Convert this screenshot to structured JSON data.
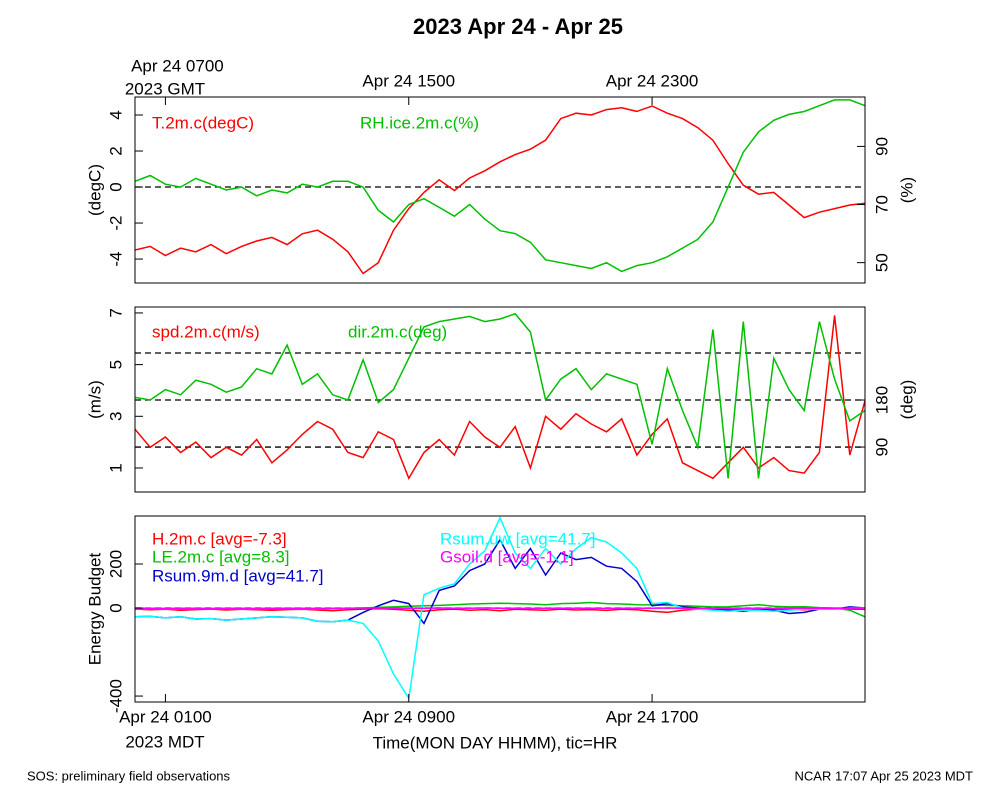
{
  "title": "2023 Apr 24 - Apr 25",
  "x_label": "Time(MON DAY HHMM), tic=HR",
  "x_sublabel": "2023 MDT",
  "top_sublabel": "2023 GMT",
  "footer_left": "SOS: preliminary field observations",
  "footer_right": "NCAR 17:07 Apr 25 2023 MDT",
  "chart_data": [
    {
      "type": "line",
      "ylabel": "(degC)",
      "y2label": "(%)",
      "xlim": [
        0,
        24
      ],
      "ylim": [
        -5.33,
        5
      ],
      "yticks": [
        -4,
        -2,
        0,
        2,
        4
      ],
      "y2lim": [
        43,
        107
      ],
      "y2ticks": [
        50,
        70,
        90
      ],
      "x2ticks": [
        {
          "value": 1,
          "label": "Apr 24 0700"
        },
        {
          "value": 9,
          "label": "Apr 24 1500"
        },
        {
          "value": 17,
          "label": "Apr 24 2300"
        }
      ],
      "hlines": [
        0
      ],
      "x": [
        0,
        0.5,
        1,
        1.5,
        2,
        2.5,
        3,
        3.5,
        4,
        4.5,
        5,
        5.5,
        6,
        6.5,
        7,
        7.5,
        8,
        8.5,
        9,
        9.5,
        10,
        10.5,
        11,
        11.5,
        12,
        12.5,
        13,
        13.5,
        14,
        14.5,
        15,
        15.5,
        16,
        16.5,
        17,
        17.5,
        18,
        18.5,
        19,
        19.5,
        20,
        20.5,
        21,
        21.5,
        22,
        22.5,
        23,
        23.5,
        24
      ],
      "series": [
        {
          "name": "T.2m.c(degC)",
          "color": "#ff0000",
          "values": [
            -3.5,
            -3.3,
            -3.8,
            -3.4,
            -3.6,
            -3.2,
            -3.7,
            -3.3,
            -3.0,
            -2.8,
            -3.2,
            -2.6,
            -2.4,
            -2.9,
            -3.6,
            -4.8,
            -4.2,
            -2.4,
            -1.2,
            -0.3,
            0.4,
            -0.2,
            0.5,
            0.9,
            1.4,
            1.8,
            2.1,
            2.6,
            3.8,
            4.1,
            4.0,
            4.3,
            4.4,
            4.2,
            4.5,
            4.1,
            3.8,
            3.3,
            2.6,
            1.3,
            0.1,
            -0.4,
            -0.3,
            -1.0,
            -1.7,
            -1.4,
            -1.2,
            -1.0,
            -0.9
          ]
        },
        {
          "name": "RH.ice.2m.c(%)",
          "color": "#00c000",
          "axis": "y2",
          "values": [
            78,
            80,
            77,
            76,
            79,
            77,
            75,
            76,
            73,
            75,
            74,
            77,
            76,
            78,
            78,
            76,
            68,
            64,
            70,
            72,
            69,
            66,
            70,
            65,
            61,
            60,
            57,
            51,
            50,
            49,
            48,
            50,
            47,
            49,
            50,
            52,
            55,
            58,
            64,
            76,
            88,
            95,
            99,
            101,
            102,
            104,
            106,
            106,
            104
          ]
        }
      ]
    },
    {
      "type": "line",
      "ylabel": "(m/s)",
      "y2label": "(deg)",
      "xlim": [
        0,
        24
      ],
      "ylim": [
        0.07,
        7.23
      ],
      "yticks": [
        1,
        3,
        5,
        7
      ],
      "y2lim": [
        4,
        358
      ],
      "y2ticks": [
        90,
        180
      ],
      "hlines_y2": [
        90,
        180,
        270
      ],
      "x": [
        0,
        0.5,
        1,
        1.5,
        2,
        2.5,
        3,
        3.5,
        4,
        4.5,
        5,
        5.5,
        6,
        6.5,
        7,
        7.5,
        8,
        8.5,
        9,
        9.5,
        10,
        10.5,
        11,
        11.5,
        12,
        12.5,
        13,
        13.5,
        14,
        14.5,
        15,
        15.5,
        16,
        16.5,
        17,
        17.5,
        18,
        18.5,
        19,
        19.5,
        20,
        20.5,
        21,
        21.5,
        22,
        22.5,
        23,
        23.5,
        24
      ],
      "series": [
        {
          "name": "spd.2m.c(m/s)",
          "color": "#ff0000",
          "values": [
            2.5,
            1.8,
            2.2,
            1.6,
            2.0,
            1.4,
            1.8,
            1.5,
            2.1,
            1.2,
            1.7,
            2.3,
            2.8,
            2.5,
            1.6,
            1.4,
            2.4,
            2.1,
            0.6,
            1.6,
            2.1,
            1.5,
            2.8,
            2.2,
            1.8,
            2.6,
            1.0,
            3.0,
            2.5,
            3.1,
            2.7,
            2.4,
            2.9,
            1.5,
            2.3,
            2.9,
            1.2,
            0.9,
            0.6,
            1.2,
            1.8,
            1.0,
            1.4,
            0.9,
            0.8,
            1.6,
            6.9,
            1.5,
            3.6
          ]
        },
        {
          "name": "dir.2m.c(deg)",
          "color": "#00c000",
          "axis": "y2",
          "values": [
            185,
            180,
            200,
            190,
            218,
            210,
            195,
            205,
            240,
            230,
            285,
            210,
            230,
            190,
            180,
            257,
            175,
            200,
            260,
            320,
            330,
            335,
            340,
            330,
            335,
            345,
            310,
            180,
            220,
            240,
            200,
            230,
            220,
            210,
            95,
            240,
            160,
            90,
            315,
            30,
            330,
            30,
            260,
            200,
            160,
            330,
            220,
            140,
            160
          ]
        }
      ]
    },
    {
      "type": "line",
      "ylabel": "Energy Budget",
      "xlim": [
        0,
        24
      ],
      "ylim": [
        -427,
        418
      ],
      "yticks": [
        -400,
        0,
        200
      ],
      "xticks": [
        {
          "value": 1,
          "label": "Apr 24 0100"
        },
        {
          "value": 9,
          "label": "Apr 24 0900"
        },
        {
          "value": 17,
          "label": "Apr 24 1700"
        }
      ],
      "hlines": [
        0
      ],
      "x": [
        0,
        0.5,
        1,
        1.5,
        2,
        2.5,
        3,
        3.5,
        4,
        4.5,
        5,
        5.5,
        6,
        6.5,
        7,
        7.5,
        8,
        8.5,
        9,
        9.5,
        10,
        10.5,
        11,
        11.5,
        12,
        12.5,
        13,
        13.5,
        14,
        14.5,
        15,
        15.5,
        16,
        16.5,
        17,
        17.5,
        18,
        18.5,
        19,
        19.5,
        20,
        20.5,
        21,
        21.5,
        22,
        22.5,
        23,
        23.5,
        24
      ],
      "series": [
        {
          "name": "H.2m.c [avg=-7.3]",
          "color": "#ff0000",
          "values": [
            -5,
            -8,
            -6,
            -10,
            -7,
            -5,
            -9,
            -6,
            -8,
            -10,
            -7,
            -6,
            -9,
            -12,
            -8,
            -5,
            -3,
            -6,
            -10,
            -15,
            -8,
            -5,
            -10,
            -7,
            -12,
            -6,
            -8,
            -10,
            -5,
            -9,
            -7,
            -11,
            -6,
            -8,
            -15,
            -20,
            -10,
            -5,
            -8,
            -6,
            -7,
            -9,
            -5,
            -6,
            -8,
            -4,
            -3,
            -5,
            -6
          ]
        },
        {
          "name": "LE.2m.c [avg=8.3]",
          "color": "#00c000",
          "values": [
            -5,
            -4,
            -6,
            -5,
            -3,
            -5,
            -4,
            -6,
            -5,
            -3,
            -4,
            -5,
            -6,
            -3,
            -2,
            0,
            3,
            5,
            8,
            10,
            12,
            15,
            18,
            20,
            22,
            20,
            18,
            15,
            20,
            22,
            25,
            20,
            18,
            15,
            14,
            12,
            10,
            8,
            5,
            6,
            10,
            15,
            8,
            5,
            6,
            2,
            0,
            -10,
            -40
          ]
        },
        {
          "name": "Rsum.9m.d [avg=41.7]",
          "color": "#0000cc",
          "values": [
            -40,
            -38,
            -45,
            -40,
            -50,
            -48,
            -55,
            -50,
            -45,
            -40,
            -42,
            -45,
            -60,
            -62,
            -55,
            -20,
            10,
            35,
            20,
            -70,
            80,
            100,
            170,
            200,
            310,
            180,
            270,
            150,
            250,
            220,
            230,
            190,
            180,
            120,
            10,
            20,
            5,
            0,
            -5,
            -10,
            -15,
            -5,
            -10,
            -25,
            -20,
            -5,
            -5,
            5,
            0
          ]
        },
        {
          "name": "Rsum.uw [avg=41.7]",
          "color": "#00ffff",
          "values": [
            -40,
            -38,
            -45,
            -40,
            -50,
            -48,
            -55,
            -50,
            -45,
            -40,
            -42,
            -45,
            -60,
            -62,
            -55,
            -70,
            -150,
            -300,
            -410,
            60,
            90,
            110,
            200,
            260,
            410,
            250,
            180,
            270,
            200,
            270,
            320,
            300,
            250,
            180,
            20,
            25,
            0,
            -5,
            -10,
            -15,
            -10,
            -10,
            -15,
            -10,
            -5,
            -5,
            -5,
            0,
            0
          ]
        },
        {
          "name": "Gsoil.d [avg=-1.1]",
          "color": "#ff00ff",
          "values": [
            -1,
            -1,
            -2,
            -1,
            -1,
            -2,
            -1,
            -1,
            -2,
            -1,
            -1,
            -1,
            -2,
            -1,
            -1,
            0,
            0,
            -1,
            -1,
            -1,
            0,
            -1,
            -1,
            0,
            -1,
            -1,
            -2,
            -1,
            -1,
            -1,
            -1,
            -2,
            -1,
            -1,
            -1,
            0,
            -1,
            -1,
            -2,
            -1,
            -1,
            -1,
            -2,
            -1,
            -1,
            -1,
            -2,
            -1,
            -1
          ]
        }
      ]
    }
  ]
}
